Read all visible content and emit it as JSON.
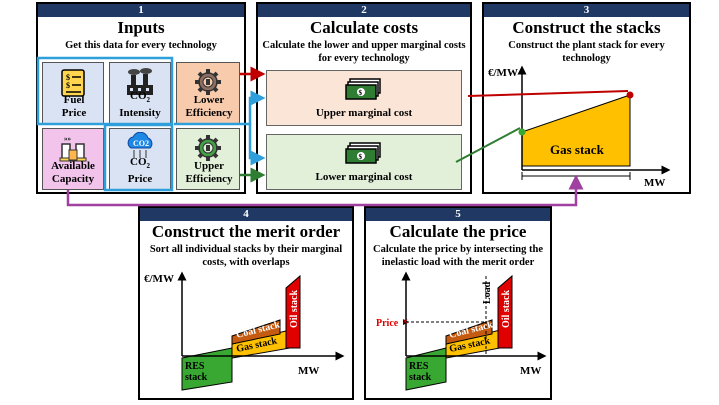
{
  "inputs": {
    "number": "1",
    "title": "Inputs",
    "subtitle": "Get this data for every technology",
    "tiles": {
      "fuel_price": "Fuel Price",
      "co2_intensity_1": "CO",
      "co2_intensity_2": "Intensity",
      "lower_efficiency": "Lower Efficiency",
      "available_capacity": "Available Capacity",
      "co2_price": "Price",
      "co2_price_top": "CO",
      "upper_efficiency": "Upper Efficiency"
    },
    "colors": {
      "fuel": "#dae3f3",
      "co2": "#dae3f3",
      "efficiency_lower": "#f8cbad",
      "capacity": "#f2c4ec",
      "co2price": "#dae3f3",
      "efficiency_upper": "#e2f0d9",
      "highlight_border": "#2e9fdb"
    }
  },
  "costs": {
    "number": "2",
    "title": "Calculate costs",
    "subtitle": "Calculate the lower and upper marginal costs for every technology",
    "upper_label": "Upper marginal cost",
    "lower_label": "Lower marginal cost",
    "colors": {
      "upper": "#fbe5d6",
      "lower": "#e2f0d9"
    }
  },
  "stacks": {
    "number": "3",
    "title": "Construct the stacks",
    "subtitle": "Construct the plant stack for every technology",
    "y_label": "€/MW",
    "x_label": "MW",
    "stack_label": "Gas stack",
    "colors": {
      "stack": "#ffc000",
      "upper_point": "#c00000",
      "lower_point": "#38a832"
    }
  },
  "merit": {
    "number": "4",
    "title": "Construct the merit order",
    "subtitle": "Sort all individual stacks by their marginal costs, with overlaps",
    "y_label": "€/MW",
    "x_label": "MW",
    "stacks": {
      "res": "RES stack",
      "gas": "Gas stack",
      "coal": "Coal stack",
      "oil": "Oil stack"
    }
  },
  "price": {
    "number": "5",
    "title": "Calculate the price",
    "subtitle": "Calculate the price by intersecting the inelastic load with the merit order",
    "x_label": "MW",
    "load_label": "Load",
    "price_label": "Price",
    "stacks": {
      "res": "RES stack",
      "gas": "Gas stack",
      "coal": "Coal stack",
      "oil": "Oil stack"
    }
  },
  "connector_colors": {
    "upper": "#c00000",
    "lower": "#2e7d32",
    "co2": "#2e9fdb",
    "capacity": "#a040a0"
  }
}
